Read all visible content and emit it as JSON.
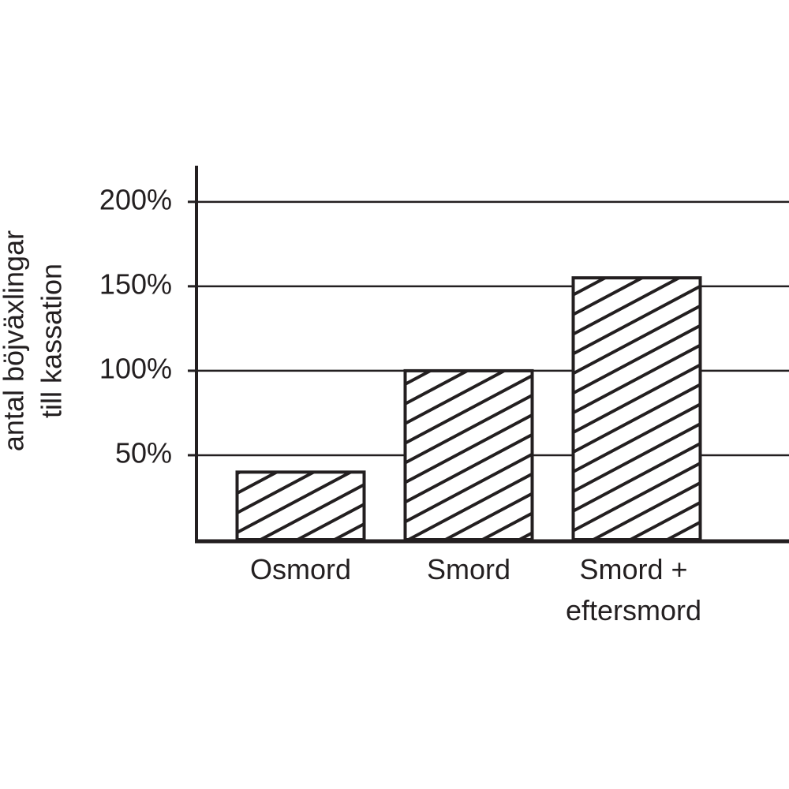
{
  "chart_data": {
    "type": "bar",
    "ylabel": [
      "antal böjväxlingar",
      "till kassation"
    ],
    "categories": [
      "Osmord",
      "Smord",
      "Smord + eftersmord"
    ],
    "values": [
      40,
      100,
      155
    ],
    "color": "#231f20",
    "ylim": [
      0,
      220
    ],
    "yticks": [
      {
        "value": 50,
        "label": "50%"
      },
      {
        "value": 100,
        "label": "100%"
      },
      {
        "value": 150,
        "label": "150%"
      },
      {
        "value": 200,
        "label": "200%"
      }
    ],
    "grid": true
  }
}
